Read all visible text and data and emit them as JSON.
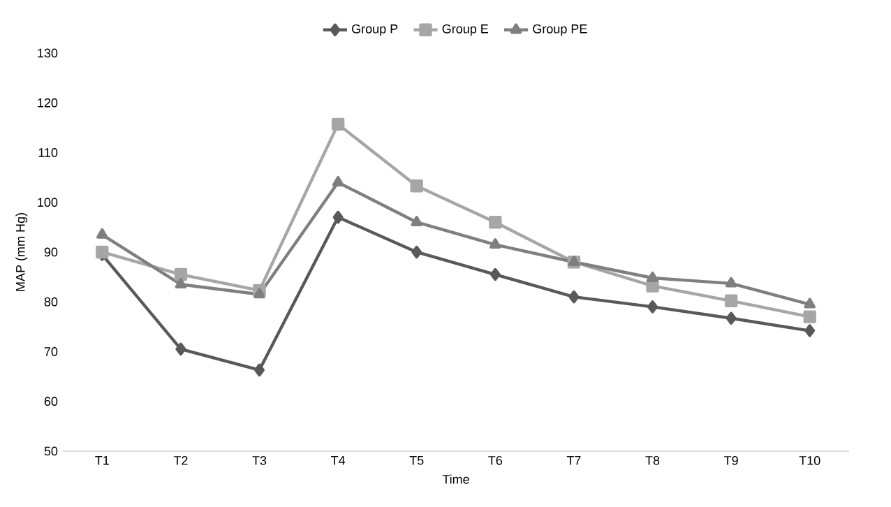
{
  "chart_data": {
    "type": "line",
    "xlabel": "Time",
    "ylabel": "MAP (mm Hg)",
    "categories": [
      "T1",
      "T2",
      "T3",
      "T4",
      "T5",
      "T6",
      "T7",
      "T8",
      "T9",
      "T10"
    ],
    "series": [
      {
        "name": "Group P",
        "color": "#595959",
        "marker": "diamond",
        "values": [
          89.5,
          70.5,
          66.3,
          97,
          90,
          85.5,
          81,
          79,
          76.7,
          74.2
        ]
      },
      {
        "name": "Group E",
        "color": "#a6a6a6",
        "marker": "square",
        "values": [
          90,
          85.5,
          82.3,
          115.7,
          103.3,
          96,
          88,
          83.2,
          80.2,
          77
        ]
      },
      {
        "name": "Group PE",
        "color": "#7f7f7f",
        "marker": "triangle",
        "values": [
          93.5,
          83.5,
          81.5,
          104,
          96,
          91.5,
          88,
          84.8,
          83.7,
          79.5
        ]
      }
    ],
    "ylim": [
      50,
      130
    ],
    "yticks": [
      50,
      60,
      70,
      80,
      90,
      100,
      110,
      120,
      130
    ],
    "legend": "top",
    "grid": false,
    "line_style": "solid"
  }
}
